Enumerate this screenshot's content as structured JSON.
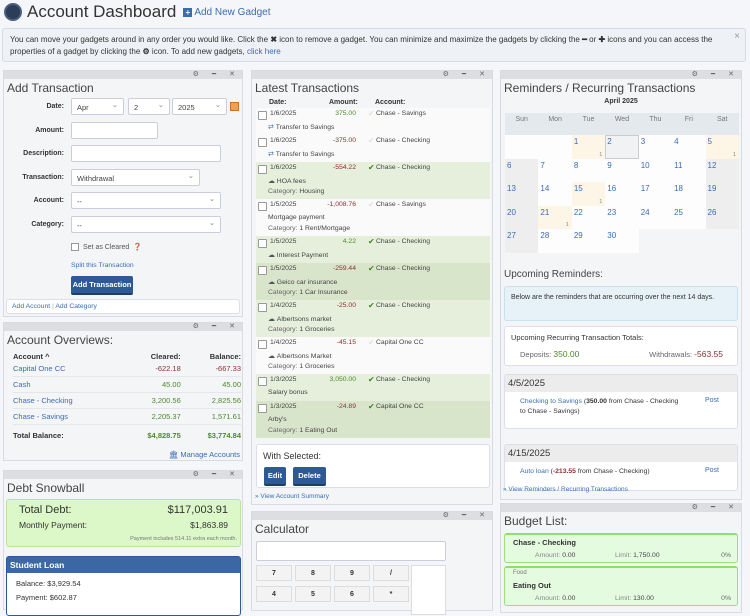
{
  "header": {
    "title": "Account Dashboard",
    "add_gadget": "Add New Gadget"
  },
  "info": {
    "text1": "You can move your gadgets around in any order you would like. Click the ",
    "text2": " icon to remove a gadget. You can minimize and maximize the gadgets by clicking the ",
    "text3": " or ",
    "text4": " icons and you can access the properties of a gadget by clicking the ",
    "text5": " icon. To add new gadgets, ",
    "link": "click here"
  },
  "add_transaction": {
    "title": "Add Transaction",
    "date_label": "Date:",
    "month": "Apr",
    "day": "2",
    "year": "2025",
    "amount_label": "Amount:",
    "description_label": "Description:",
    "transaction_label": "Transaction:",
    "transaction_value": "Withdrawal",
    "account_label": "Account:",
    "account_value": "--",
    "category_label": "Category:",
    "category_value": "--",
    "cleared_label": "Set as Cleared",
    "split": "Split this Transaction",
    "submit": "Add Transaction",
    "add_account": "Add Account",
    "add_category": "Add Category"
  },
  "overview": {
    "title": "Account Overviews:",
    "headers": [
      "Account ^",
      "Cleared:",
      "Balance:"
    ],
    "rows": [
      [
        "Capital One CC",
        "-622.18",
        "-667.33"
      ],
      [
        "Cash",
        "45.00",
        "45.00"
      ],
      [
        "Chase - Checking",
        "3,200.56",
        "2,825.56"
      ],
      [
        "Chase - Savings",
        "2,205.37",
        "1,571.61"
      ]
    ],
    "total_label": "Total Balance:",
    "total_cleared": "$4,828.75",
    "total_balance": "$3,774.84",
    "manage": "Manage Accounts"
  },
  "snowball": {
    "title": "Debt Snowball",
    "total_label": "Total Debt:",
    "total": "$117,003.91",
    "monthly_label": "Monthly Payment:",
    "monthly": "$1,863.89",
    "note": "Payment includes 514.11 extra each month.",
    "loan_title": "Student Loan",
    "balance": "Balance: $3,929.54",
    "payment": "Payment: $602.87"
  },
  "latest": {
    "title": "Latest Transactions",
    "headers": [
      "Date:",
      "Amount:",
      "Account:"
    ],
    "rows": [
      {
        "date": "1/6/2025",
        "amount": "375.00",
        "account": "Chase - Savings",
        "cleared": false,
        "desc": "Transfer to Savings",
        "icon": "transfer",
        "category": ""
      },
      {
        "date": "1/6/2025",
        "amount": "-375.00",
        "account": "Chase - Checking",
        "cleared": false,
        "desc": "Transfer to Savings",
        "icon": "transfer",
        "category": ""
      },
      {
        "date": "1/6/2025",
        "amount": "-554.22",
        "account": "Chase - Checking",
        "cleared": true,
        "desc": "HOA fees",
        "icon": "cloud",
        "category": "Housing"
      },
      {
        "date": "1/5/2025",
        "amount": "-1,008.76",
        "account": "Chase - Savings",
        "cleared": false,
        "desc": "Mortgage payment",
        "icon": "",
        "category": "1 Rent/Mortgage"
      },
      {
        "date": "1/5/2025",
        "amount": "4.22",
        "account": "Chase - Checking",
        "cleared": true,
        "desc": "Interest Payment",
        "icon": "cloud",
        "category": ""
      },
      {
        "date": "1/5/2025",
        "amount": "-259.44",
        "account": "Chase - Checking",
        "cleared": true,
        "desc": "Geico car insurance",
        "icon": "cloud",
        "category": "1 Car Insurance"
      },
      {
        "date": "1/4/2025",
        "amount": "-25.00",
        "account": "Chase - Checking",
        "cleared": true,
        "desc": "Albertsons market",
        "icon": "cloud",
        "category": "1 Groceries"
      },
      {
        "date": "1/4/2025",
        "amount": "-45.15",
        "account": "Capital One CC",
        "cleared": false,
        "desc": "Albertsons Market",
        "icon": "cloud",
        "category": "1 Groceries"
      },
      {
        "date": "1/3/2025",
        "amount": "3,050.00",
        "account": "Chase - Checking",
        "cleared": true,
        "desc": "Salary bonus",
        "icon": "",
        "category": ""
      },
      {
        "date": "1/3/2025",
        "amount": "-24.89",
        "account": "Capital One CC",
        "cleared": true,
        "desc": "Arby's",
        "icon": "",
        "category": "1 Eating Out"
      }
    ],
    "category_prefix": "Category: ",
    "with_selected": "With Selected:",
    "edit": "Edit",
    "delete": "Delete",
    "view_summary": "View Account Summary"
  },
  "calculator": {
    "title": "Calculator",
    "keys": [
      "7",
      "8",
      "9",
      "/",
      "4",
      "5",
      "6",
      "*"
    ]
  },
  "reminders": {
    "title": "Reminders / Recurring Transactions",
    "month": "April 2025",
    "weekdays": [
      "Sun",
      "Mon",
      "Tue",
      "Wed",
      "Thu",
      "Fri",
      "Sat"
    ],
    "event_days": {
      "1": "1",
      "5": "1",
      "15": "1",
      "21": "1"
    },
    "today": 2,
    "upcoming_title": "Upcoming Reminders:",
    "notice": "Below are the reminders that are occurring over the next 14 days.",
    "totals_title": "Upcoming Recurring Transaction Totals:",
    "deposits_label": "Deposits:",
    "deposits": "350.00",
    "withdrawals_label": "Withdrawals:",
    "withdrawals": "-563.55",
    "groups": [
      {
        "date": "4/5/2025",
        "name": "Checking to Savings",
        "amount": "350.00",
        "detail": "from Chase - Checking to Chase - Savings)",
        "post": "Post"
      },
      {
        "date": "4/15/2025",
        "name": "Auto loan",
        "amount": "-213.55",
        "detail": "from Chase - Checking)",
        "post": "Post"
      }
    ],
    "view_all": "View Reminders / Recurring Transactions"
  },
  "budget": {
    "title": "Budget List:",
    "items": [
      {
        "group": "",
        "name": "Chase - Checking",
        "amount_label": "Amount:",
        "amount": "0.00",
        "limit_label": "Limit:",
        "limit": "1,750.00",
        "pct": "0%"
      },
      {
        "group": "Food",
        "name": "Eating Out",
        "amount_label": "Amount:",
        "amount": "0.00",
        "limit_label": "Limit:",
        "limit": "130.00",
        "pct": "0%"
      }
    ]
  },
  "colors": {
    "accent": "#2d5a96",
    "link": "#3a6cb4",
    "positive": "#4b8a2a",
    "negative": "#8a3030",
    "cleared_row": "#e6efdb",
    "budget_bg": "#e5fbe0"
  }
}
